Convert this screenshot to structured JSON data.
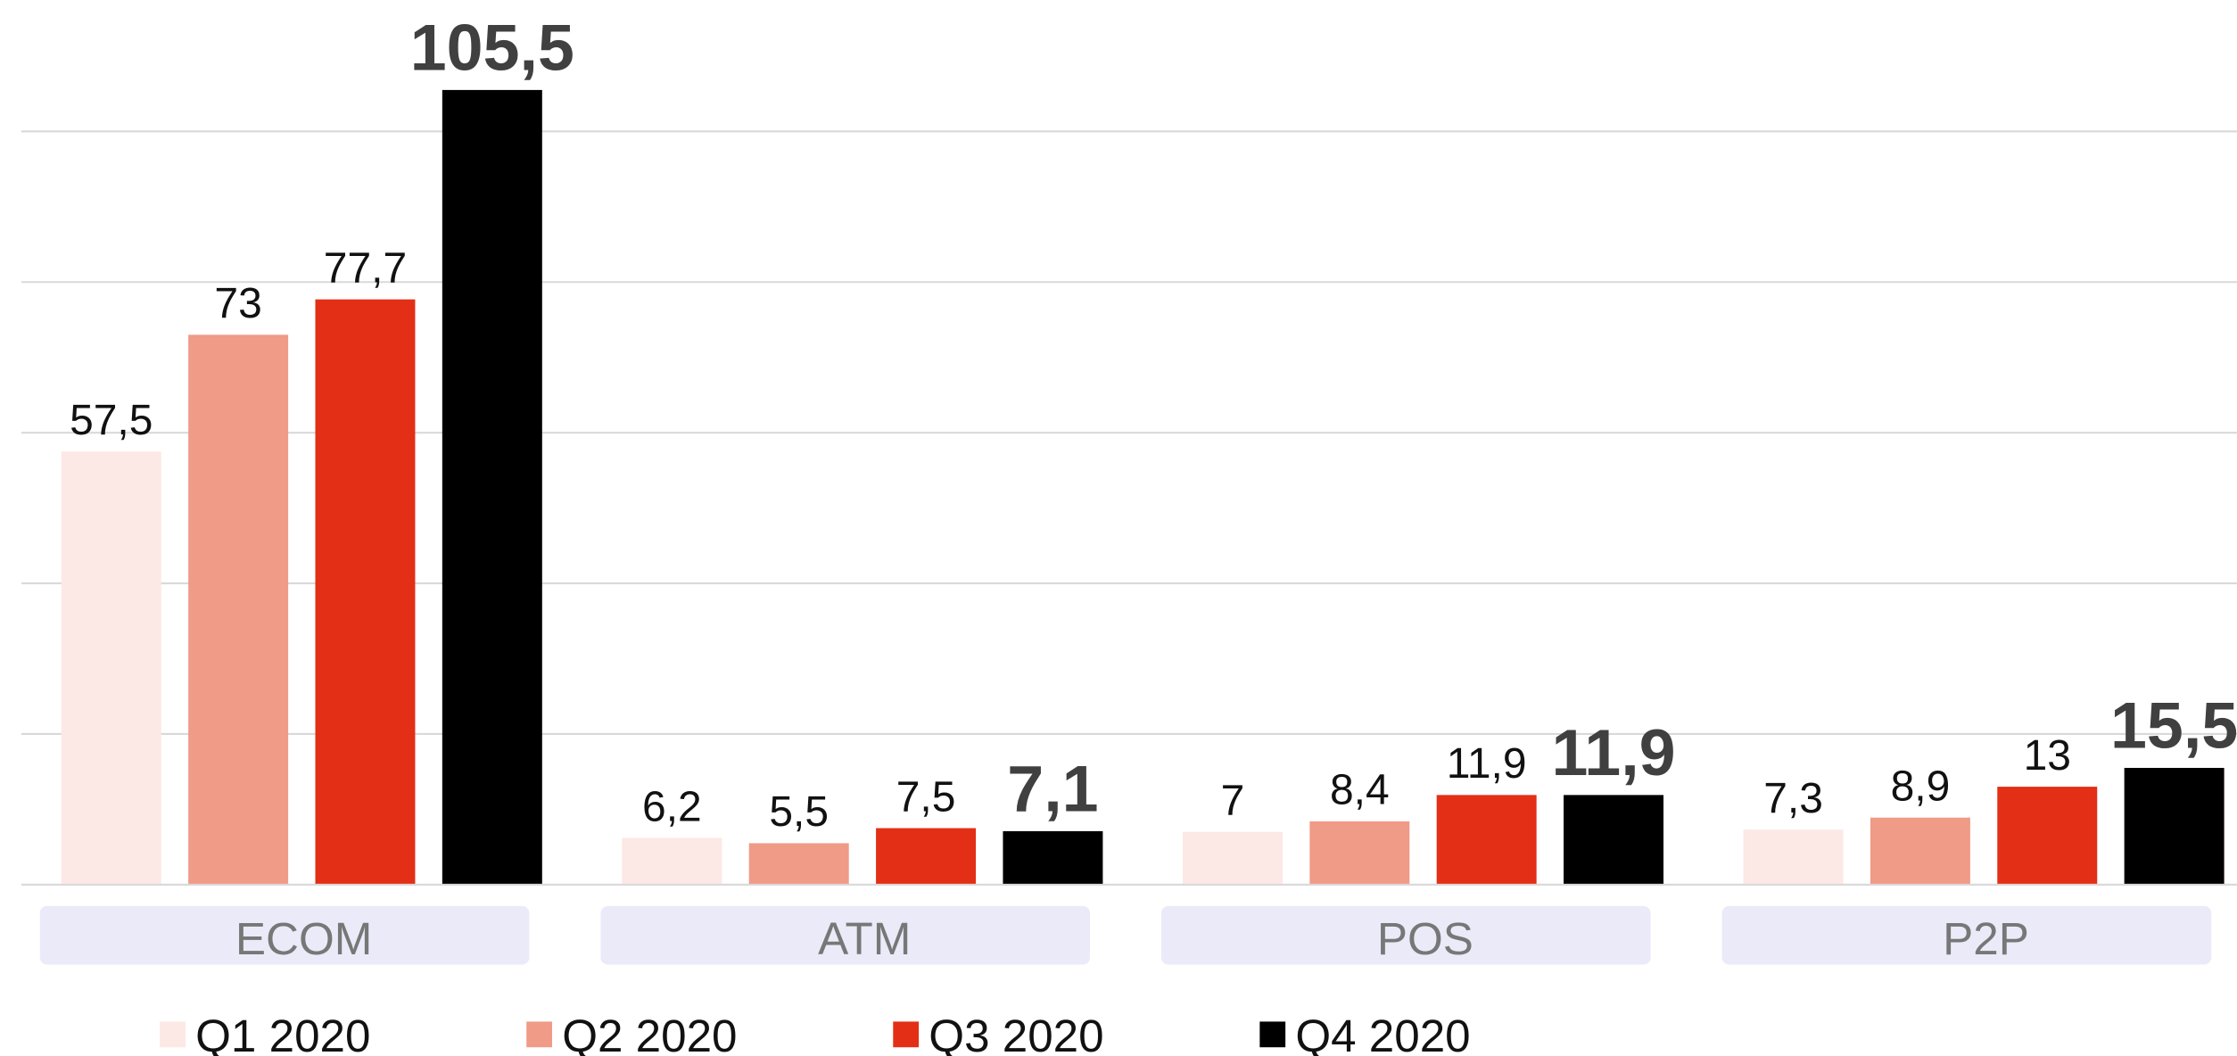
{
  "chart_data": {
    "type": "bar",
    "categories": [
      "ECOM",
      "ATM",
      "POS",
      "P2P"
    ],
    "series": [
      {
        "name": "Q1 2020",
        "color": "#fce8e4",
        "values": [
          57.5,
          6.2,
          7,
          7.3
        ],
        "value_labels": [
          "57,5",
          "6,2",
          "7",
          "7,3"
        ]
      },
      {
        "name": "Q2 2020",
        "color": "#f09a88",
        "values": [
          73,
          5.5,
          8.4,
          8.9
        ],
        "value_labels": [
          "73",
          "5,5",
          "8,4",
          "8,9"
        ]
      },
      {
        "name": "Q3 2020",
        "color": "#e32f16",
        "values": [
          77.7,
          7.5,
          11.9,
          13
        ],
        "value_labels": [
          "77,7",
          "7,5",
          "11,9",
          "13"
        ]
      },
      {
        "name": "Q4 2020",
        "color": "#000000",
        "values": [
          105.5,
          7.1,
          11.9,
          15.5
        ],
        "value_labels": [
          "105,5",
          "7,1",
          "11,9",
          "15,5"
        ]
      }
    ],
    "ylim": [
      0,
      110
    ],
    "yticks": [
      0,
      20,
      40,
      60,
      80,
      100
    ],
    "grid": true,
    "legend": "bottom"
  }
}
